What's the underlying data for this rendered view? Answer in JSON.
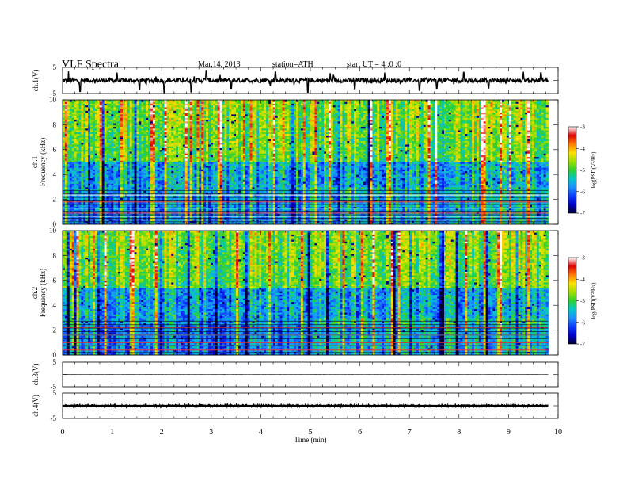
{
  "header": {
    "title": "VLF  Spectra",
    "date": "Mar.14, 2013",
    "station": "station=ATH",
    "start": "start  UT  =   4  :0  :0"
  },
  "colors": {
    "background": "#ffffff",
    "colormap": [
      "#000033",
      "#0000cc",
      "#0a3cff",
      "#1e90ff",
      "#00c8c8",
      "#2ed02e",
      "#a0e000",
      "#ffe000",
      "#ff7a00",
      "#e00000",
      "#ffffff"
    ]
  },
  "chart_data": [
    {
      "type": "line",
      "panel": "ch1-waveform",
      "ylabel": "ch.1(V)",
      "ylim": [
        -5,
        5
      ],
      "yticks": [
        "5",
        "-5"
      ],
      "xlim": [
        0,
        10
      ],
      "x_extent_max": 9.8,
      "baseline": 0,
      "noise_amplitude": 0.8,
      "spikes": [
        {
          "x": 0.12,
          "y": 3.5
        },
        {
          "x": 0.35,
          "y": -4.2
        },
        {
          "x": 1.1,
          "y": 3.0
        },
        {
          "x": 1.55,
          "y": -3.4
        },
        {
          "x": 2.05,
          "y": -4.6
        },
        {
          "x": 2.6,
          "y": -4.4
        },
        {
          "x": 2.9,
          "y": 3.8
        },
        {
          "x": 3.4,
          "y": -3.0
        },
        {
          "x": 4.3,
          "y": 3.2
        },
        {
          "x": 4.95,
          "y": -4.5
        },
        {
          "x": 5.4,
          "y": 2.8
        },
        {
          "x": 5.9,
          "y": -3.2
        },
        {
          "x": 6.5,
          "y": 3.0
        },
        {
          "x": 7.2,
          "y": -3.8
        },
        {
          "x": 7.55,
          "y": -3.0
        },
        {
          "x": 8.1,
          "y": 3.1
        },
        {
          "x": 8.6,
          "y": -2.9
        },
        {
          "x": 9.3,
          "y": 3.3
        },
        {
          "x": 9.65,
          "y": 2.9
        }
      ]
    },
    {
      "type": "heatmap",
      "panel": "ch1-spectrogram",
      "ylabel": "ch.1\nFrequency  (kHz)",
      "ylim": [
        0,
        10
      ],
      "yticks": [
        "0",
        "2",
        "4",
        "6",
        "8",
        "10"
      ],
      "xlim": [
        0,
        10
      ],
      "x_extent_max": 9.8,
      "colorbar": {
        "label": "log(PSD(V²/Hz)",
        "range": [
          -7,
          -3
        ],
        "ticks": [
          "-3",
          "-4",
          "-5",
          "-6",
          "-7"
        ]
      },
      "description_values": {
        "dominant_low_freq_band_khz": [
          0.2,
          3.0
        ],
        "low_psd_region_khz": [
          2.5,
          5.0
        ],
        "high_psd_region_khz": [
          5.0,
          10.0
        ],
        "bright_lines_khz": [
          0.35,
          0.65,
          0.9,
          1.3,
          1.8,
          2.35
        ],
        "transition_time_min": 4.85
      }
    },
    {
      "type": "heatmap",
      "panel": "ch2-spectrogram",
      "ylabel": "ch.2\nFrequency  (kHz)",
      "ylim": [
        0,
        10
      ],
      "yticks": [
        "0",
        "2",
        "4",
        "6",
        "8",
        "10"
      ],
      "xlim": [
        0,
        10
      ],
      "x_extent_max": 9.8,
      "colorbar": {
        "label": "log(PSD(V²/Hz)",
        "range": [
          -7,
          -3
        ],
        "ticks": [
          "-3",
          "-4",
          "-5",
          "-6",
          "-7"
        ]
      },
      "description_values": {
        "dominant_low_freq_band_khz": [
          0.2,
          3.5
        ],
        "low_psd_region_khz": [
          2.5,
          5.5
        ],
        "high_psd_region_khz": [
          5.5,
          10.0
        ],
        "bright_lines_khz": [
          0.4,
          0.75,
          1.0,
          1.6,
          2.2
        ],
        "transition_time_min": 4.85
      }
    },
    {
      "type": "line",
      "panel": "ch3-waveform",
      "ylabel": "ch.3(V)",
      "ylim": [
        -5,
        5
      ],
      "yticks": [
        "5",
        "-5"
      ],
      "xlim": [
        0,
        10
      ],
      "x_extent_max": 9.8,
      "baseline": 0,
      "noise_amplitude": 0.05
    },
    {
      "type": "line",
      "panel": "ch4-waveform",
      "ylabel": "ch.4(V)",
      "ylim": [
        -5,
        5
      ],
      "yticks": [
        "5",
        "-5"
      ],
      "xlim": [
        0,
        10
      ],
      "x_extent_max": 9.8,
      "baseline": 0,
      "noise_amplitude": 0.5
    }
  ],
  "xaxis": {
    "label": "Time  (min)",
    "ticks": [
      "0",
      "1",
      "2",
      "3",
      "4",
      "5",
      "6",
      "7",
      "8",
      "9",
      "10"
    ]
  }
}
